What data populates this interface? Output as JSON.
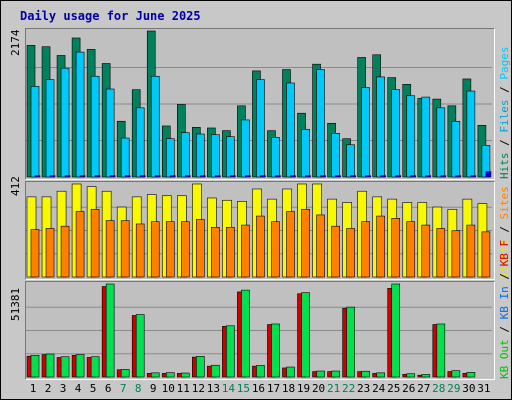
{
  "title": "Daily usage for June 2025",
  "colors": {
    "hits": "#00805c",
    "files": "#00c8f8",
    "pages": "#0000f0",
    "visits": "#f8f800",
    "sites": "#ff8000",
    "kbin": "#006cf0",
    "kbout": "#00c000",
    "kbf": "#d00000",
    "kbgreen": "#00e050"
  },
  "legend": {
    "top": [
      {
        "text": "Hits",
        "color": "#00805c"
      },
      {
        "text": " / ",
        "color": "#000000"
      },
      {
        "text": "Files",
        "color": "#00a0d0"
      },
      {
        "text": " / ",
        "color": "#000000"
      },
      {
        "text": "Pages",
        "color": "#00c8f8"
      }
    ],
    "middle": [
      {
        "text": "Visits",
        "color": "#e8e800"
      },
      {
        "text": " / ",
        "color": "#000000"
      },
      {
        "text": "Sites",
        "color": "#ff8000"
      }
    ],
    "bottom": [
      {
        "text": "KB Out",
        "color": "#00c000"
      },
      {
        "text": " / ",
        "color": "#000000"
      },
      {
        "text": "KB In",
        "color": "#006cf0"
      },
      {
        "text": " / ",
        "color": "#000000"
      },
      {
        "text": "KB F",
        "color": "#d00000"
      }
    ]
  },
  "chart_data": [
    {
      "type": "bar",
      "name": "hits-files-pages",
      "ymax_label": "2174",
      "ylim": [
        0,
        2174
      ],
      "series": [
        {
          "name": "Hits",
          "values": [
            1960,
            1940,
            1810,
            2070,
            1900,
            1690,
            830,
            1300,
            2174,
            760,
            1080,
            740,
            730,
            690,
            1060,
            1580,
            690,
            1600,
            950,
            1680,
            800,
            570,
            1780,
            1820,
            1480,
            1380,
            1170,
            1160,
            1060,
            1460,
            770
          ]
        },
        {
          "name": "Files",
          "values": [
            1350,
            1450,
            1620,
            1860,
            1500,
            1310,
            580,
            1030,
            1500,
            570,
            660,
            640,
            630,
            600,
            850,
            1450,
            590,
            1400,
            710,
            1600,
            650,
            480,
            1330,
            1490,
            1300,
            1210,
            1190,
            1030,
            830,
            1280,
            470
          ]
        },
        {
          "name": "Pages",
          "values": [
            20,
            20,
            20,
            20,
            20,
            20,
            20,
            20,
            20,
            20,
            20,
            20,
            20,
            20,
            20,
            20,
            20,
            20,
            20,
            20,
            20,
            20,
            20,
            20,
            20,
            20,
            20,
            20,
            20,
            20,
            80
          ]
        }
      ]
    },
    {
      "type": "bar",
      "name": "visits-sites",
      "ymax_label": "412",
      "ylim": [
        0,
        412
      ],
      "series": [
        {
          "name": "Visits",
          "values": [
            355,
            355,
            380,
            412,
            400,
            380,
            310,
            355,
            365,
            360,
            360,
            412,
            350,
            340,
            335,
            390,
            345,
            390,
            412,
            412,
            345,
            330,
            380,
            355,
            345,
            330,
            330,
            310,
            300,
            345,
            325
          ]
        },
        {
          "name": "Sites",
          "values": [
            210,
            215,
            225,
            290,
            300,
            250,
            250,
            235,
            245,
            245,
            245,
            255,
            220,
            220,
            230,
            270,
            245,
            290,
            300,
            275,
            225,
            215,
            245,
            270,
            260,
            245,
            230,
            215,
            205,
            230,
            200
          ]
        }
      ]
    },
    {
      "type": "bar",
      "name": "kb",
      "ymax_label": "51381",
      "ylim": [
        0,
        51381
      ],
      "series": [
        {
          "name": "KB F",
          "values": [
            11500,
            12400,
            10800,
            12000,
            10800,
            50000,
            4000,
            34000,
            2000,
            2000,
            2000,
            11000,
            6000,
            28000,
            47000,
            6000,
            29000,
            5000,
            46000,
            3000,
            3000,
            38000,
            3000,
            2000,
            49000,
            1500,
            1000,
            29000,
            3000,
            2000,
            0
          ]
        },
        {
          "name": "KB Out",
          "values": [
            12000,
            12700,
            11200,
            12400,
            11200,
            51381,
            4200,
            34500,
            2300,
            2400,
            2200,
            11400,
            6500,
            28300,
            48000,
            6400,
            29300,
            5500,
            46600,
            3300,
            3300,
            38600,
            3200,
            2300,
            51381,
            1800,
            1400,
            29300,
            3500,
            2600,
            0
          ]
        }
      ]
    }
  ],
  "x_days": [
    "1",
    "2",
    "3",
    "4",
    "5",
    "6",
    "7",
    "8",
    "9",
    "10",
    "11",
    "12",
    "13",
    "14",
    "15",
    "16",
    "17",
    "18",
    "19",
    "20",
    "21",
    "22",
    "23",
    "24",
    "25",
    "26",
    "27",
    "28",
    "29",
    "30",
    "31"
  ],
  "weekend_days": [
    7,
    8,
    14,
    15,
    21,
    22,
    28,
    29
  ]
}
